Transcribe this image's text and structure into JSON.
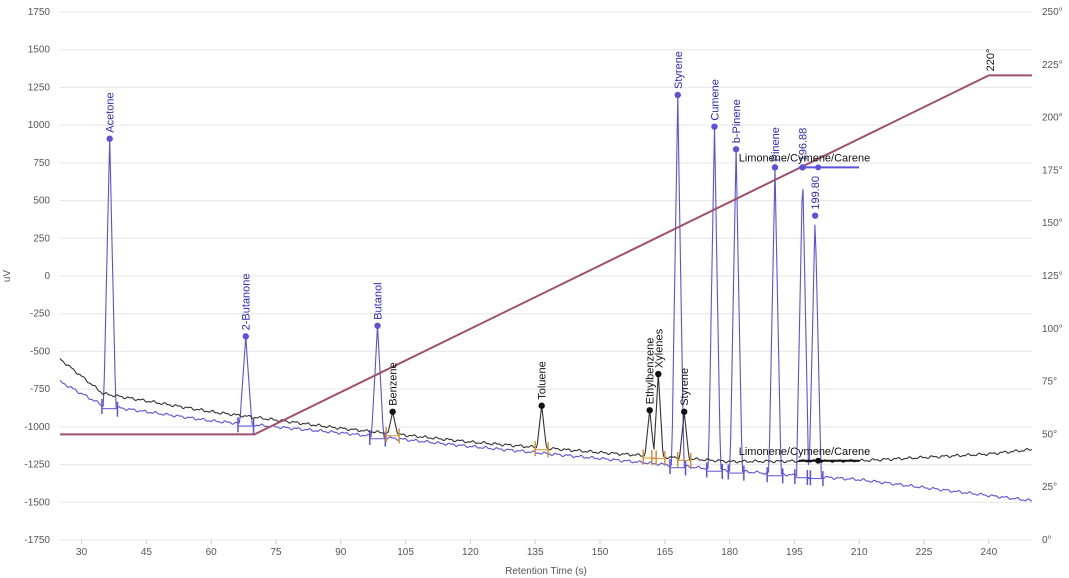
{
  "chart_data": {
    "type": "line",
    "title": "",
    "xlabel": "Retention Time (s)",
    "ylabel": "uV",
    "y2label": "",
    "xlim": [
      25,
      250
    ],
    "ylim": [
      -1750,
      1750
    ],
    "y2lim": [
      0,
      250
    ],
    "x_ticks": [
      30,
      45,
      60,
      75,
      90,
      105,
      120,
      135,
      150,
      165,
      180,
      195,
      210,
      225,
      240
    ],
    "y_ticks": [
      -1750,
      -1500,
      -1250,
      -1000,
      -750,
      -500,
      -250,
      0,
      250,
      500,
      750,
      1000,
      1250,
      1500,
      1750
    ],
    "y2_ticks": [
      "0°",
      "25°",
      "50°",
      "75°",
      "100°",
      "125°",
      "150°",
      "175°",
      "200°",
      "225°",
      "250°"
    ],
    "colors": {
      "blue": "#5b52d9",
      "black": "#333333",
      "orange": "#d4922b",
      "temperature": "#a0506a"
    },
    "temperature_program": {
      "points": [
        [
          25,
          50
        ],
        [
          70,
          50
        ],
        [
          240,
          220
        ],
        [
          250,
          220
        ]
      ],
      "annotation": "220°",
      "annotation_x": 240,
      "annotation_value": 220
    },
    "series": [
      {
        "color": "blue",
        "baseline": [
          [
            25,
            -700
          ],
          [
            35,
            -860
          ],
          [
            60,
            -960
          ],
          [
            90,
            -1040
          ],
          [
            120,
            -1130
          ],
          [
            150,
            -1210
          ],
          [
            180,
            -1290
          ],
          [
            210,
            -1350
          ],
          [
            250,
            -1490
          ]
        ],
        "peaks": [
          {
            "x": 36.5,
            "y": 910,
            "label": "Acetone"
          },
          {
            "x": 68,
            "y": -400,
            "label": "2-Butanone"
          },
          {
            "x": 98.5,
            "y": -330,
            "label": "Butanol"
          },
          {
            "x": 168,
            "y": 1200,
            "label": "Styrene"
          },
          {
            "x": 176.5,
            "y": 990,
            "label": "Cumene"
          },
          {
            "x": 181.5,
            "y": 840,
            "label": "b-Pinene"
          },
          {
            "x": 190.5,
            "y": 720,
            "label": "Pinene"
          },
          {
            "x": 196.9,
            "y": 720,
            "label": "196.88"
          },
          {
            "x": 199.8,
            "y": 400,
            "label": "199.80"
          }
        ]
      },
      {
        "color": "black",
        "baseline": [
          [
            25,
            -550
          ],
          [
            35,
            -780
          ],
          [
            60,
            -900
          ],
          [
            90,
            -1010
          ],
          [
            120,
            -1100
          ],
          [
            150,
            -1170
          ],
          [
            180,
            -1230
          ],
          [
            210,
            -1225
          ],
          [
            240,
            -1180
          ],
          [
            250,
            -1150
          ]
        ],
        "peaks": [
          {
            "x": 102,
            "y": -900,
            "label": "Benzene"
          },
          {
            "x": 136.5,
            "y": -860,
            "label": "Toluene"
          },
          {
            "x": 161.5,
            "y": -890,
            "label": "Ethylbenzene"
          },
          {
            "x": 163.5,
            "y": -650,
            "label": "Xylenes"
          },
          {
            "x": 169.5,
            "y": -900,
            "label": "Styrene"
          }
        ]
      }
    ],
    "range_markers": [
      {
        "x_start": 196,
        "x_end": 210,
        "y": 720,
        "label": "Limonene/Cymene/Carene",
        "color": "blue"
      },
      {
        "x_start": 196,
        "x_end": 210,
        "y": -1225,
        "label": "Limonene/Cymene/Carene",
        "color": "black"
      }
    ]
  }
}
